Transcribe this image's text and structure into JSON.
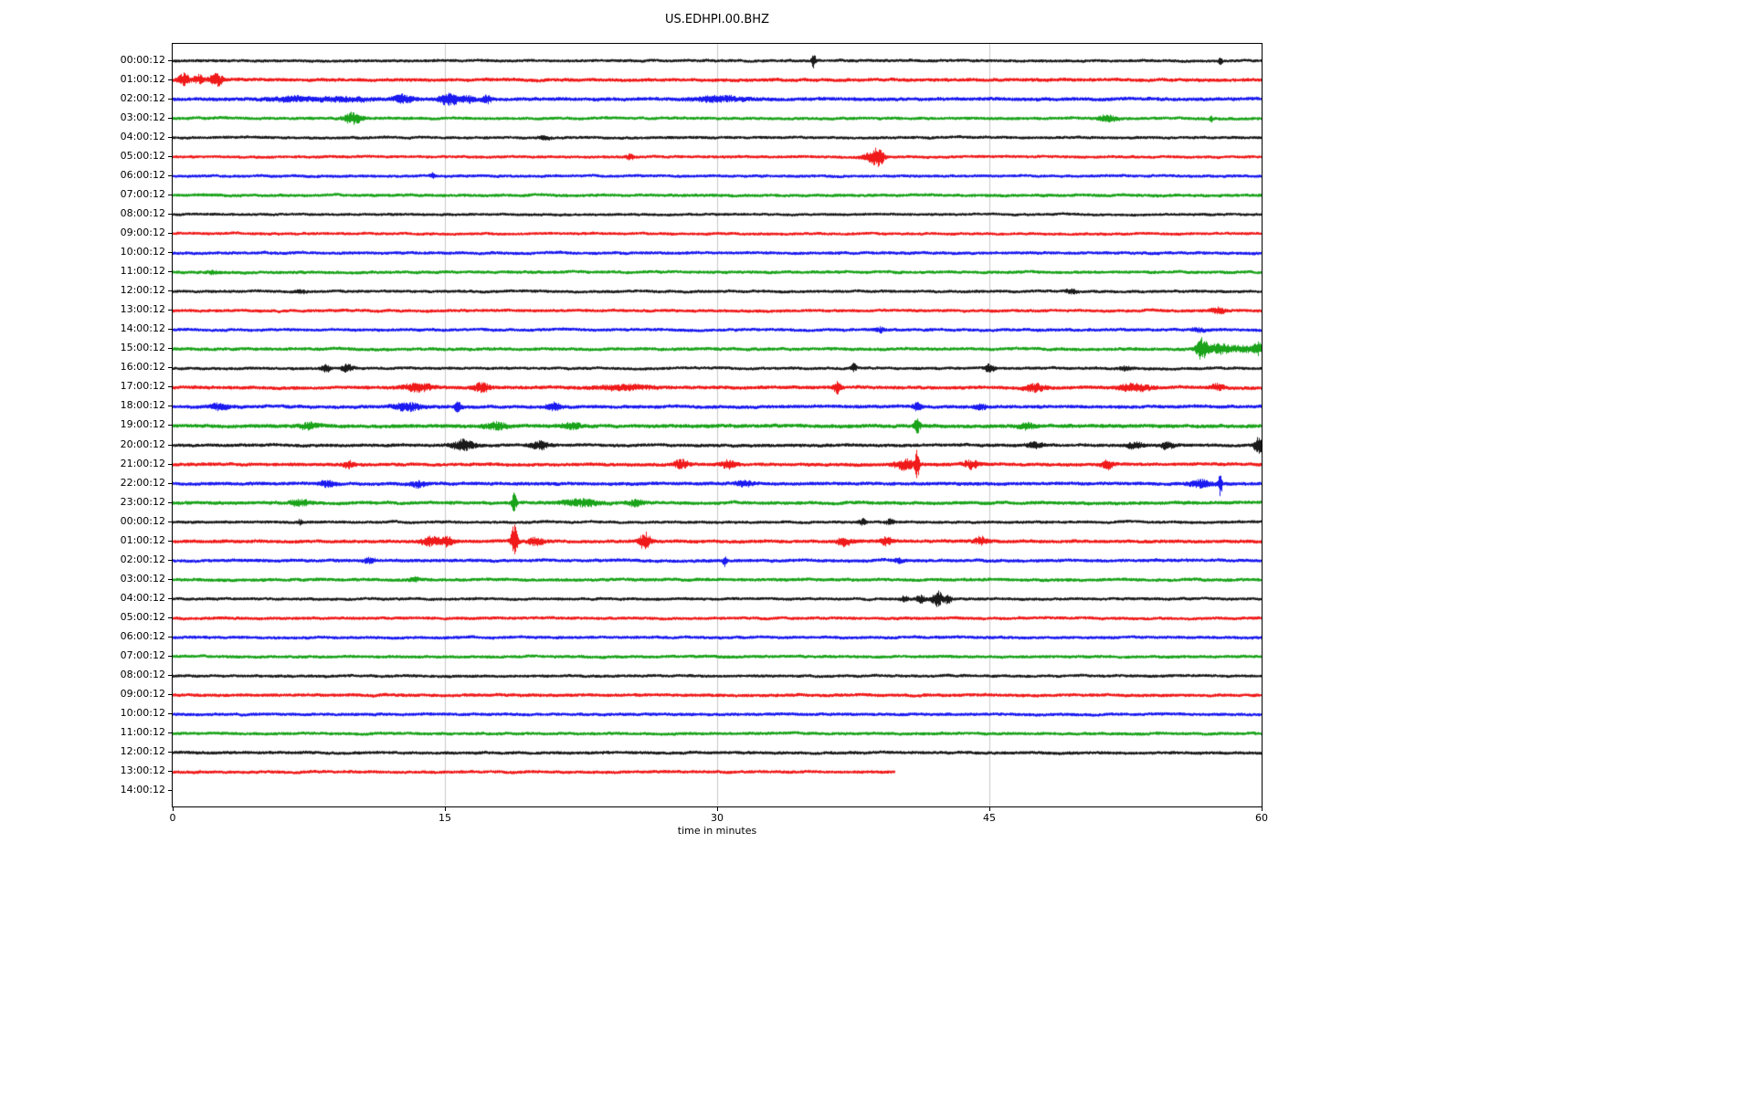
{
  "figure": {
    "title": "US.EDHPI.00.BHZ",
    "xlabel": "time in minutes"
  },
  "chart_data": {
    "type": "line",
    "subtype": "helicorder-dayplot",
    "title": "US.EDHPI.00.BHZ",
    "xlabel": "time in minutes",
    "x_ticks": [
      0,
      15,
      30,
      45,
      60
    ],
    "x_range": [
      0,
      60
    ],
    "row_duration_minutes": 60,
    "grid": true,
    "grid_color": "#c8c8c8",
    "legend": "none",
    "color_cycle": [
      "#000000",
      "#ee0000",
      "#0000ee",
      "#009900"
    ],
    "rows": [
      {
        "label": "00:00:12",
        "noise": 1.2,
        "events": [
          {
            "t": 35.3,
            "a": 7,
            "w": 0.12
          },
          {
            "t": 57.7,
            "a": 4,
            "w": 0.1
          }
        ]
      },
      {
        "label": "01:00:12",
        "noise": 1.5,
        "events": [
          {
            "t": 0.6,
            "a": 6,
            "w": 0.3
          },
          {
            "t": 1.4,
            "a": 4,
            "w": 0.3
          },
          {
            "t": 2.4,
            "a": 6,
            "w": 0.35
          }
        ]
      },
      {
        "label": "02:00:12",
        "noise": 1.6,
        "events": [
          {
            "t": 6.5,
            "a": 2,
            "w": 1.2
          },
          {
            "t": 9.5,
            "a": 2,
            "w": 1.5
          },
          {
            "t": 12.7,
            "a": 4,
            "w": 0.5
          },
          {
            "t": 15.2,
            "a": 6,
            "w": 0.5
          },
          {
            "t": 16.3,
            "a": 3,
            "w": 0.4
          },
          {
            "t": 17.3,
            "a": 4,
            "w": 0.25
          },
          {
            "t": 30,
            "a": 2.5,
            "w": 1.4
          }
        ]
      },
      {
        "label": "03:00:12",
        "noise": 1.3,
        "events": [
          {
            "t": 9.9,
            "a": 6,
            "w": 0.45
          },
          {
            "t": 51.5,
            "a": 3,
            "w": 0.5
          },
          {
            "t": 57.2,
            "a": 3.5,
            "w": 0.08
          }
        ]
      },
      {
        "label": "04:00:12",
        "noise": 1.2,
        "events": [
          {
            "t": 20.5,
            "a": 1.5,
            "w": 0.3
          }
        ]
      },
      {
        "label": "05:00:12",
        "noise": 1.2,
        "events": [
          {
            "t": 25.2,
            "a": 3,
            "w": 0.2
          },
          {
            "t": 38.5,
            "a": 5,
            "w": 0.5
          },
          {
            "t": 38.9,
            "a": 9,
            "w": 0.25
          }
        ]
      },
      {
        "label": "06:00:12",
        "noise": 1.2,
        "events": [
          {
            "t": 14.3,
            "a": 2,
            "w": 0.15
          }
        ]
      },
      {
        "label": "07:00:12",
        "noise": 1.3,
        "events": []
      },
      {
        "label": "08:00:12",
        "noise": 1.1,
        "events": []
      },
      {
        "label": "09:00:12",
        "noise": 1.2,
        "events": []
      },
      {
        "label": "10:00:12",
        "noise": 1.3,
        "events": []
      },
      {
        "label": "11:00:12",
        "noise": 1.3,
        "events": [
          {
            "t": 2.2,
            "a": 1.5,
            "w": 0.3
          }
        ]
      },
      {
        "label": "12:00:12",
        "noise": 1.2,
        "events": [
          {
            "t": 7,
            "a": 1.5,
            "w": 0.3
          },
          {
            "t": 49.5,
            "a": 2,
            "w": 0.3
          }
        ]
      },
      {
        "label": "13:00:12",
        "noise": 1.3,
        "events": [
          {
            "t": 57.6,
            "a": 3,
            "w": 0.4
          }
        ]
      },
      {
        "label": "14:00:12",
        "noise": 1.3,
        "events": [
          {
            "t": 39,
            "a": 2.5,
            "w": 0.25
          },
          {
            "t": 56.5,
            "a": 2,
            "w": 0.3
          }
        ]
      },
      {
        "label": "15:00:12",
        "noise": 1.4,
        "events": [
          {
            "t": 56.7,
            "a": 12,
            "w": 0.3
          },
          {
            "t": 57.6,
            "a": 5,
            "w": 0.5
          },
          {
            "t": 59,
            "a": 3,
            "w": 1.0
          },
          {
            "t": 59.8,
            "a": 5,
            "w": 0.2
          }
        ]
      },
      {
        "label": "16:00:12",
        "noise": 1.2,
        "events": [
          {
            "t": 8.4,
            "a": 4,
            "w": 0.25
          },
          {
            "t": 9.6,
            "a": 4,
            "w": 0.3
          },
          {
            "t": 37.5,
            "a": 4,
            "w": 0.15
          },
          {
            "t": 45,
            "a": 5,
            "w": 0.25
          },
          {
            "t": 52.5,
            "a": 2,
            "w": 0.3
          }
        ]
      },
      {
        "label": "17:00:12",
        "noise": 1.5,
        "events": [
          {
            "t": 13.5,
            "a": 4,
            "w": 0.8
          },
          {
            "t": 17,
            "a": 5,
            "w": 0.4
          },
          {
            "t": 25,
            "a": 2.5,
            "w": 1.5
          },
          {
            "t": 36.6,
            "a": 6,
            "w": 0.2
          },
          {
            "t": 47.5,
            "a": 4,
            "w": 0.5
          },
          {
            "t": 53,
            "a": 4,
            "w": 0.8
          },
          {
            "t": 57.5,
            "a": 3,
            "w": 0.4
          }
        ]
      },
      {
        "label": "18:00:12",
        "noise": 1.5,
        "events": [
          {
            "t": 2.5,
            "a": 3,
            "w": 0.5
          },
          {
            "t": 12.9,
            "a": 4,
            "w": 0.7
          },
          {
            "t": 15.7,
            "a": 7,
            "w": 0.15
          },
          {
            "t": 21,
            "a": 3.5,
            "w": 0.4
          },
          {
            "t": 41,
            "a": 4,
            "w": 0.2
          },
          {
            "t": 44.5,
            "a": 2.5,
            "w": 0.3
          }
        ]
      },
      {
        "label": "19:00:12",
        "noise": 1.7,
        "events": [
          {
            "t": 7.5,
            "a": 3,
            "w": 0.5
          },
          {
            "t": 17.8,
            "a": 3.5,
            "w": 0.6
          },
          {
            "t": 22,
            "a": 3,
            "w": 0.5
          },
          {
            "t": 41,
            "a": 8,
            "w": 0.15
          },
          {
            "t": 47,
            "a": 3,
            "w": 0.4
          }
        ]
      },
      {
        "label": "20:00:12",
        "noise": 1.4,
        "events": [
          {
            "t": 16,
            "a": 5,
            "w": 0.6
          },
          {
            "t": 20.2,
            "a": 4,
            "w": 0.5
          },
          {
            "t": 47.5,
            "a": 3,
            "w": 0.4
          },
          {
            "t": 53,
            "a": 3.5,
            "w": 0.4
          },
          {
            "t": 54.8,
            "a": 4,
            "w": 0.3
          },
          {
            "t": 59.8,
            "a": 8,
            "w": 0.25
          }
        ]
      },
      {
        "label": "21:00:12",
        "noise": 1.5,
        "events": [
          {
            "t": 9.7,
            "a": 3.5,
            "w": 0.3
          },
          {
            "t": 28,
            "a": 4,
            "w": 0.4
          },
          {
            "t": 30.6,
            "a": 4,
            "w": 0.4
          },
          {
            "t": 40.3,
            "a": 6,
            "w": 0.5
          },
          {
            "t": 41,
            "a": 14,
            "w": 0.12
          },
          {
            "t": 44,
            "a": 4,
            "w": 0.4
          },
          {
            "t": 51.5,
            "a": 4,
            "w": 0.3
          }
        ]
      },
      {
        "label": "22:00:12",
        "noise": 1.5,
        "events": [
          {
            "t": 8.5,
            "a": 3,
            "w": 0.4
          },
          {
            "t": 13.5,
            "a": 3,
            "w": 0.4
          },
          {
            "t": 31.5,
            "a": 2.5,
            "w": 0.5
          },
          {
            "t": 56.6,
            "a": 4,
            "w": 0.6
          },
          {
            "t": 57.7,
            "a": 13,
            "w": 0.1
          }
        ]
      },
      {
        "label": "23:00:12",
        "noise": 1.5,
        "events": [
          {
            "t": 7,
            "a": 3,
            "w": 0.5
          },
          {
            "t": 18.8,
            "a": 10,
            "w": 0.12
          },
          {
            "t": 22.5,
            "a": 3.5,
            "w": 1.0
          },
          {
            "t": 25.5,
            "a": 3,
            "w": 0.4
          }
        ]
      },
      {
        "label": "00:00:12",
        "noise": 1.2,
        "events": [
          {
            "t": 7,
            "a": 2.5,
            "w": 0.15
          },
          {
            "t": 38,
            "a": 3,
            "w": 0.2
          },
          {
            "t": 39.5,
            "a": 2.5,
            "w": 0.2
          }
        ]
      },
      {
        "label": "01:00:12",
        "noise": 1.5,
        "events": [
          {
            "t": 14.2,
            "a": 5,
            "w": 0.5
          },
          {
            "t": 15.1,
            "a": 5,
            "w": 0.3
          },
          {
            "t": 18.8,
            "a": 18,
            "w": 0.18
          },
          {
            "t": 20,
            "a": 4,
            "w": 0.4
          },
          {
            "t": 26,
            "a": 9,
            "w": 0.3
          },
          {
            "t": 37,
            "a": 4,
            "w": 0.4
          },
          {
            "t": 39.3,
            "a": 4,
            "w": 0.3
          },
          {
            "t": 44.5,
            "a": 4,
            "w": 0.35
          }
        ]
      },
      {
        "label": "02:00:12",
        "noise": 1.4,
        "events": [
          {
            "t": 10.8,
            "a": 2.5,
            "w": 0.3
          },
          {
            "t": 30.4,
            "a": 5,
            "w": 0.1
          },
          {
            "t": 40,
            "a": 2,
            "w": 0.3
          }
        ]
      },
      {
        "label": "03:00:12",
        "noise": 1.4,
        "events": [
          {
            "t": 13.3,
            "a": 2,
            "w": 0.3
          }
        ]
      },
      {
        "label": "04:00:12",
        "noise": 1.2,
        "events": [
          {
            "t": 40.3,
            "a": 3,
            "w": 0.2
          },
          {
            "t": 41.2,
            "a": 4,
            "w": 0.25
          },
          {
            "t": 42.1,
            "a": 8,
            "w": 0.3
          },
          {
            "t": 42.7,
            "a": 4,
            "w": 0.2
          }
        ]
      },
      {
        "label": "05:00:12",
        "noise": 1.3,
        "events": []
      },
      {
        "label": "06:00:12",
        "noise": 1.3,
        "events": []
      },
      {
        "label": "07:00:12",
        "noise": 1.3,
        "events": []
      },
      {
        "label": "08:00:12",
        "noise": 1.2,
        "events": []
      },
      {
        "label": "09:00:12",
        "noise": 1.4,
        "events": []
      },
      {
        "label": "10:00:12",
        "noise": 1.3,
        "events": []
      },
      {
        "label": "11:00:12",
        "noise": 1.3,
        "events": []
      },
      {
        "label": "12:00:12",
        "noise": 1.3,
        "events": []
      },
      {
        "label": "13:00:12",
        "noise": 1.3,
        "end_minute": 39.8,
        "events": []
      },
      {
        "label": "14:00:12",
        "noise": 0,
        "end_minute": 0,
        "events": []
      }
    ]
  }
}
